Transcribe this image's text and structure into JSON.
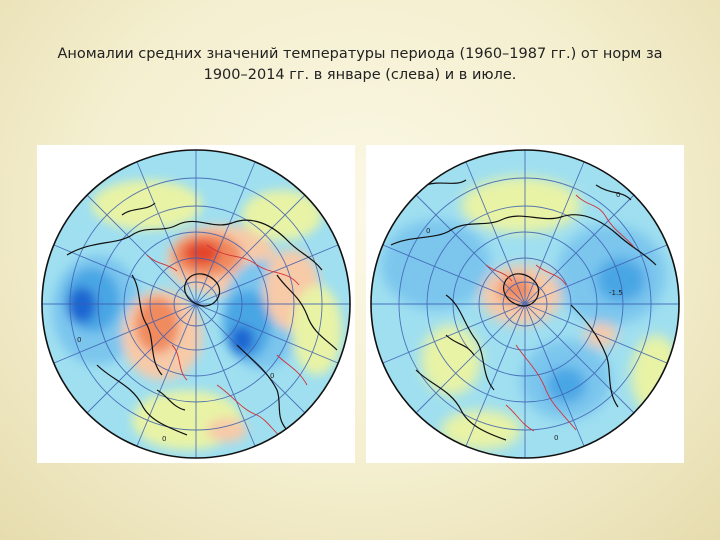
{
  "slide": {
    "title_line1": "Аномалии средних значений температуры периода (1960–1987 гг.) от норм за",
    "title_line2": "1900–2014 гг. в январе (слева) и в июле."
  },
  "maps": [
    {
      "name": "january",
      "labels": [
        "0",
        "0",
        "0"
      ]
    },
    {
      "name": "july",
      "labels": [
        "0",
        "0",
        "0",
        "-1.5"
      ]
    }
  ],
  "colors": {
    "background": "#f4efcf",
    "ocean_base": "#9fdff0",
    "cold_light": "#7cc6ee",
    "cold": "#4aa6e4",
    "cold_strong": "#1f66d1",
    "warm_light": "#f7caa8",
    "warm": "#f08a5e",
    "warm_strong": "#e2452a",
    "neutral": "#e8f3a6",
    "coast": "#111111",
    "grid": "#3b5fb0",
    "border": "#d2323a"
  }
}
